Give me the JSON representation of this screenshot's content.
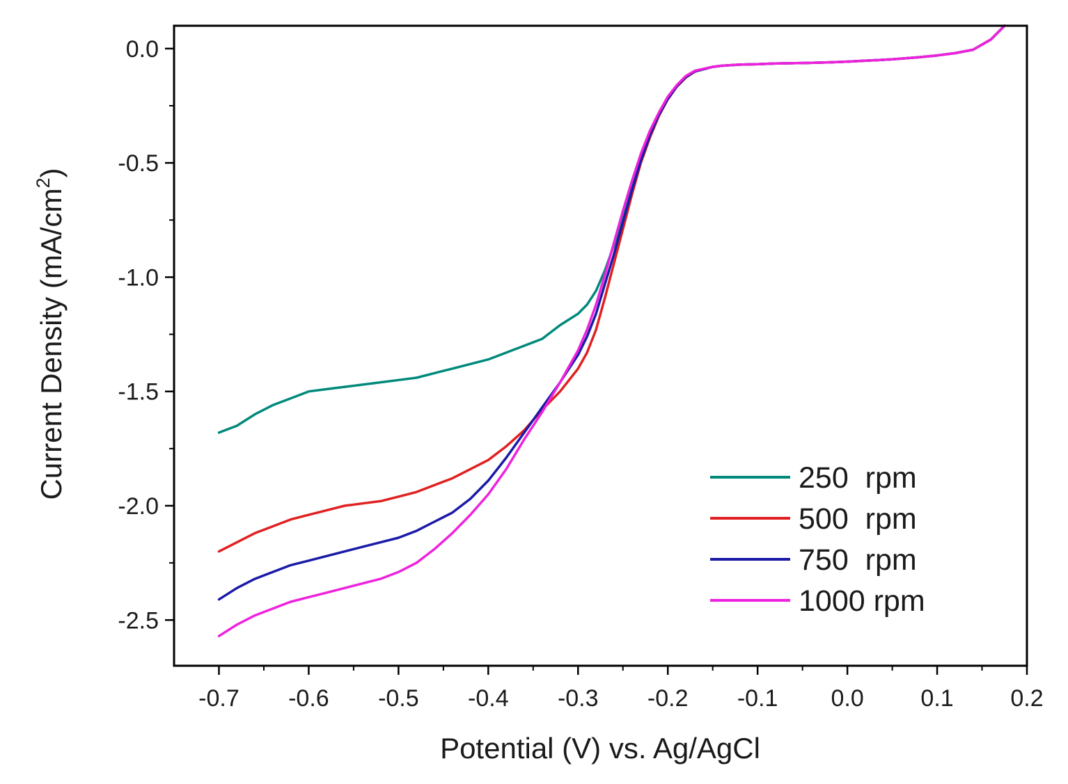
{
  "chart_data": {
    "type": "line",
    "title": "",
    "xlabel": "Potential (V) vs. Ag/AgCl",
    "ylabel": {
      "main": "Current Density (mA/cm",
      "superscript": "2",
      "close": ")"
    },
    "xlim": [
      -0.75,
      0.2
    ],
    "ylim": [
      -2.7,
      0.1
    ],
    "xticks": [
      {
        "value": -0.7,
        "label": "-0.7"
      },
      {
        "value": -0.6,
        "label": "-0.6"
      },
      {
        "value": -0.5,
        "label": "-0.5"
      },
      {
        "value": -0.4,
        "label": "-0.4"
      },
      {
        "value": -0.3,
        "label": "-0.3"
      },
      {
        "value": -0.2,
        "label": "-0.2"
      },
      {
        "value": -0.1,
        "label": "-0.1"
      },
      {
        "value": 0.0,
        "label": "0.0"
      },
      {
        "value": 0.1,
        "label": "0.1"
      },
      {
        "value": 0.2,
        "label": "0.2"
      }
    ],
    "yticks": [
      {
        "value": 0.0,
        "label": "0.0"
      },
      {
        "value": -0.5,
        "label": "-0.5"
      },
      {
        "value": -1.0,
        "label": "-1.0"
      },
      {
        "value": -1.5,
        "label": "-1.5"
      },
      {
        "value": -2.0,
        "label": "-2.0"
      },
      {
        "value": -2.5,
        "label": "-2.5"
      }
    ],
    "grid": false,
    "legend_position": "bottom-right",
    "series": [
      {
        "name": "250  rpm",
        "color": "#00897b",
        "x": [
          -0.7,
          -0.68,
          -0.66,
          -0.64,
          -0.62,
          -0.6,
          -0.58,
          -0.56,
          -0.54,
          -0.52,
          -0.5,
          -0.48,
          -0.46,
          -0.44,
          -0.42,
          -0.4,
          -0.38,
          -0.36,
          -0.34,
          -0.32,
          -0.3,
          -0.29,
          -0.28,
          -0.27,
          -0.26,
          -0.25,
          -0.24,
          -0.23,
          -0.22,
          -0.21,
          -0.2,
          -0.19,
          -0.18,
          -0.17,
          -0.16,
          -0.15,
          -0.14,
          -0.12,
          -0.1,
          -0.08,
          -0.05,
          -0.02,
          0.0,
          0.02,
          0.05,
          0.08,
          0.1,
          0.12,
          0.14,
          0.16,
          0.17,
          0.175
        ],
        "y": [
          -1.68,
          -1.65,
          -1.6,
          -1.56,
          -1.53,
          -1.5,
          -1.49,
          -1.48,
          -1.47,
          -1.46,
          -1.45,
          -1.44,
          -1.42,
          -1.4,
          -1.38,
          -1.36,
          -1.33,
          -1.3,
          -1.27,
          -1.21,
          -1.16,
          -1.12,
          -1.06,
          -0.97,
          -0.86,
          -0.74,
          -0.61,
          -0.49,
          -0.38,
          -0.29,
          -0.22,
          -0.165,
          -0.125,
          -0.1,
          -0.09,
          -0.08,
          -0.075,
          -0.07,
          -0.068,
          -0.065,
          -0.063,
          -0.06,
          -0.057,
          -0.053,
          -0.047,
          -0.038,
          -0.03,
          -0.02,
          -0.005,
          0.04,
          0.08,
          0.1
        ]
      },
      {
        "name": "500  rpm",
        "color": "#e02020",
        "x": [
          -0.7,
          -0.68,
          -0.66,
          -0.64,
          -0.62,
          -0.6,
          -0.58,
          -0.56,
          -0.54,
          -0.52,
          -0.5,
          -0.48,
          -0.46,
          -0.44,
          -0.42,
          -0.4,
          -0.38,
          -0.36,
          -0.34,
          -0.32,
          -0.3,
          -0.29,
          -0.28,
          -0.27,
          -0.26,
          -0.25,
          -0.24,
          -0.23,
          -0.22,
          -0.21,
          -0.2,
          -0.19,
          -0.18,
          -0.17,
          -0.16,
          -0.15,
          -0.14,
          -0.12,
          -0.1,
          -0.08,
          -0.05,
          -0.02,
          0.0,
          0.02,
          0.05,
          0.08,
          0.1,
          0.12,
          0.14,
          0.16,
          0.17,
          0.175
        ],
        "y": [
          -2.2,
          -2.16,
          -2.12,
          -2.09,
          -2.06,
          -2.04,
          -2.02,
          -2.0,
          -1.99,
          -1.98,
          -1.96,
          -1.94,
          -1.91,
          -1.88,
          -1.84,
          -1.8,
          -1.74,
          -1.67,
          -1.58,
          -1.5,
          -1.4,
          -1.33,
          -1.23,
          -1.09,
          -0.94,
          -0.79,
          -0.64,
          -0.5,
          -0.39,
          -0.295,
          -0.222,
          -0.167,
          -0.127,
          -0.101,
          -0.09,
          -0.08,
          -0.075,
          -0.07,
          -0.068,
          -0.065,
          -0.063,
          -0.06,
          -0.057,
          -0.053,
          -0.047,
          -0.038,
          -0.03,
          -0.02,
          -0.005,
          0.04,
          0.08,
          0.1
        ]
      },
      {
        "name": "750  rpm",
        "color": "#1a1aa8",
        "x": [
          -0.7,
          -0.68,
          -0.66,
          -0.64,
          -0.62,
          -0.6,
          -0.58,
          -0.56,
          -0.54,
          -0.52,
          -0.5,
          -0.48,
          -0.46,
          -0.44,
          -0.42,
          -0.4,
          -0.38,
          -0.36,
          -0.34,
          -0.32,
          -0.3,
          -0.29,
          -0.28,
          -0.27,
          -0.26,
          -0.25,
          -0.24,
          -0.23,
          -0.22,
          -0.21,
          -0.2,
          -0.19,
          -0.18,
          -0.17,
          -0.16,
          -0.15,
          -0.14,
          -0.12,
          -0.1,
          -0.08,
          -0.05,
          -0.02,
          0.0,
          0.02,
          0.05,
          0.08,
          0.1,
          0.12,
          0.14,
          0.16,
          0.17,
          0.175
        ],
        "y": [
          -2.41,
          -2.36,
          -2.32,
          -2.29,
          -2.26,
          -2.24,
          -2.22,
          -2.2,
          -2.18,
          -2.16,
          -2.14,
          -2.11,
          -2.07,
          -2.03,
          -1.97,
          -1.89,
          -1.79,
          -1.68,
          -1.57,
          -1.46,
          -1.34,
          -1.26,
          -1.16,
          -1.03,
          -0.9,
          -0.76,
          -0.62,
          -0.49,
          -0.38,
          -0.29,
          -0.22,
          -0.165,
          -0.125,
          -0.1,
          -0.09,
          -0.08,
          -0.075,
          -0.07,
          -0.068,
          -0.065,
          -0.063,
          -0.06,
          -0.057,
          -0.053,
          -0.047,
          -0.038,
          -0.03,
          -0.02,
          -0.005,
          0.04,
          0.08,
          0.1
        ]
      },
      {
        "name": "1000 rpm",
        "color": "#ee22dd",
        "x": [
          -0.7,
          -0.68,
          -0.66,
          -0.64,
          -0.62,
          -0.6,
          -0.58,
          -0.56,
          -0.54,
          -0.52,
          -0.5,
          -0.48,
          -0.46,
          -0.44,
          -0.42,
          -0.4,
          -0.38,
          -0.36,
          -0.34,
          -0.32,
          -0.3,
          -0.29,
          -0.28,
          -0.27,
          -0.26,
          -0.25,
          -0.24,
          -0.23,
          -0.22,
          -0.21,
          -0.2,
          -0.19,
          -0.18,
          -0.17,
          -0.16,
          -0.15,
          -0.14,
          -0.12,
          -0.1,
          -0.08,
          -0.05,
          -0.02,
          0.0,
          0.02,
          0.05,
          0.08,
          0.1,
          0.12,
          0.14,
          0.16,
          0.17,
          0.175
        ],
        "y": [
          -2.57,
          -2.52,
          -2.48,
          -2.45,
          -2.42,
          -2.4,
          -2.38,
          -2.36,
          -2.34,
          -2.32,
          -2.29,
          -2.25,
          -2.19,
          -2.12,
          -2.04,
          -1.95,
          -1.84,
          -1.71,
          -1.59,
          -1.46,
          -1.32,
          -1.23,
          -1.12,
          -0.99,
          -0.85,
          -0.71,
          -0.58,
          -0.46,
          -0.36,
          -0.28,
          -0.21,
          -0.16,
          -0.12,
          -0.097,
          -0.088,
          -0.08,
          -0.075,
          -0.07,
          -0.068,
          -0.065,
          -0.063,
          -0.06,
          -0.057,
          -0.053,
          -0.047,
          -0.038,
          -0.03,
          -0.02,
          -0.005,
          0.04,
          0.08,
          0.1
        ]
      }
    ]
  }
}
